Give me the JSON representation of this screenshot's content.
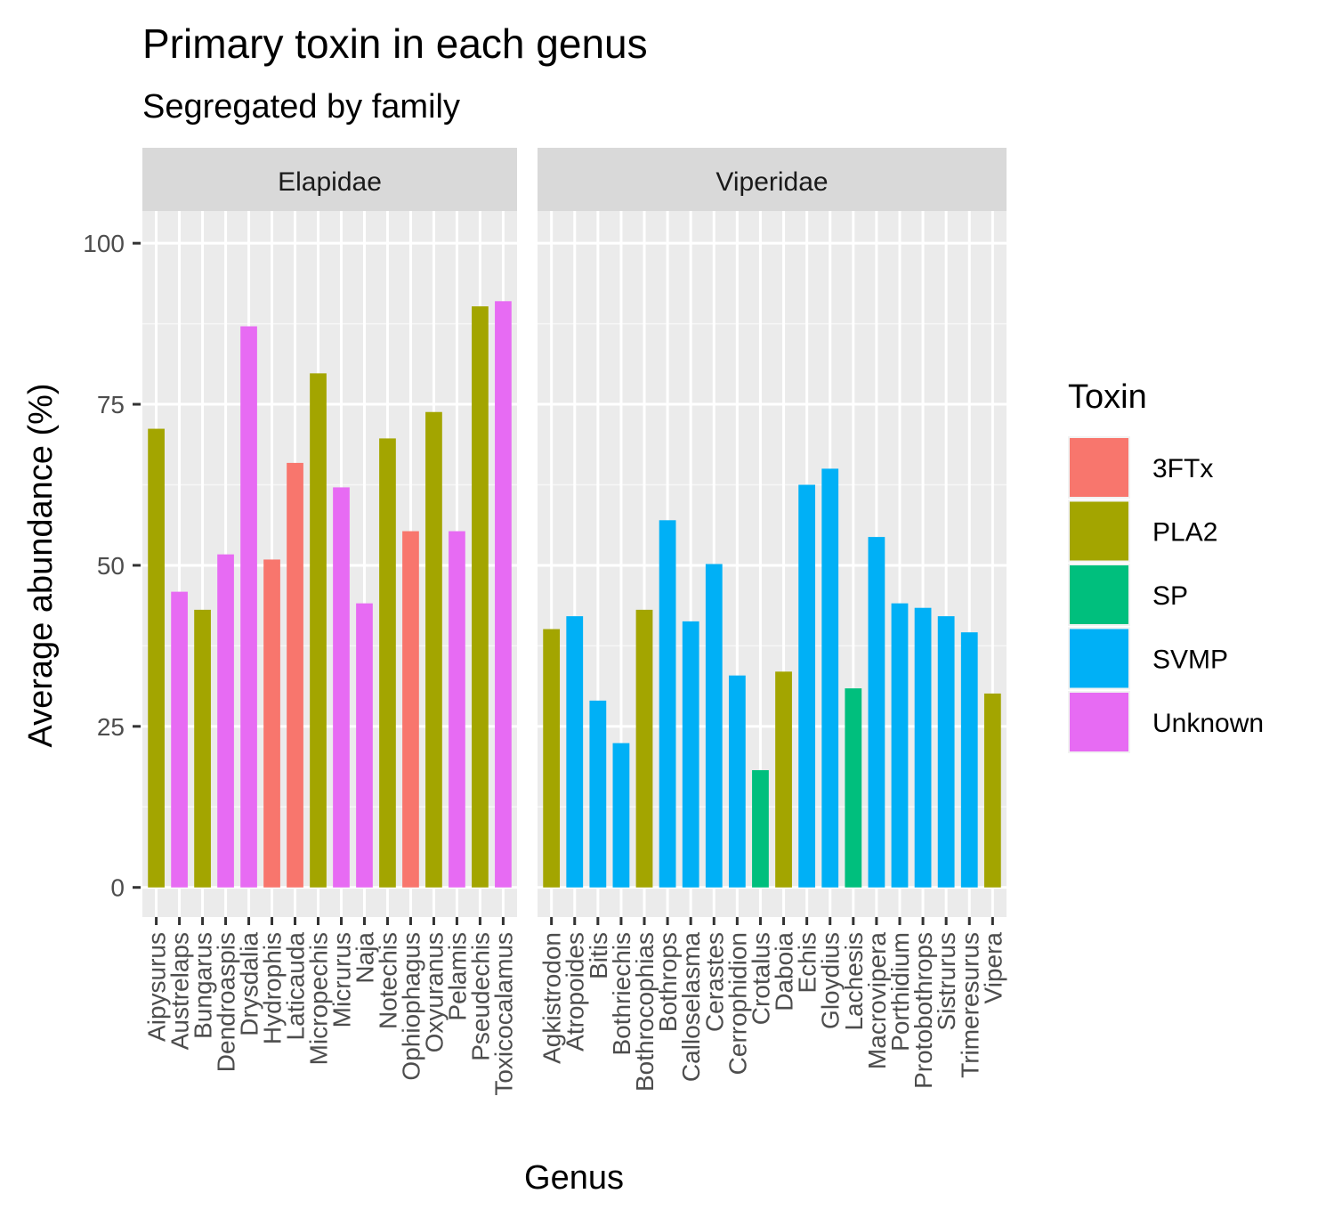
{
  "chart_data": {
    "type": "bar",
    "title": "Primary toxin in each genus",
    "subtitle": "Segregated by family",
    "xlabel": "Genus",
    "ylabel": "Average abundance (%)",
    "ylim": [
      -4.6,
      105
    ],
    "yticks": [
      0,
      25,
      50,
      75,
      100
    ],
    "grid": true,
    "legend": {
      "title": "Toxin",
      "position": "right",
      "entries": [
        {
          "name": "3FTx",
          "color": "#F8766D"
        },
        {
          "name": "PLA2",
          "color": "#A3A500"
        },
        {
          "name": "SP",
          "color": "#00BF7D"
        },
        {
          "name": "SVMP",
          "color": "#00B0F6"
        },
        {
          "name": "Unknown",
          "color": "#E76BF3"
        }
      ]
    },
    "panels": [
      {
        "family": "Elapidae",
        "categories": [
          "Aipysurus",
          "Austrelaps",
          "Bungarus",
          "Dendroaspis",
          "Drysdalia",
          "Hydrophis",
          "Laticauda",
          "Micropechis",
          "Micrurus",
          "Naja",
          "Notechis",
          "Ophiophagus",
          "Oxyuranus",
          "Pelamis",
          "Pseudechis",
          "Toxicocalamus"
        ],
        "values": [
          71.2,
          45.9,
          43.1,
          51.7,
          87.1,
          50.9,
          65.9,
          79.8,
          62.1,
          44.1,
          69.7,
          55.3,
          73.8,
          55.3,
          90.2,
          91.0
        ],
        "toxins": [
          "PLA2",
          "Unknown",
          "PLA2",
          "Unknown",
          "Unknown",
          "3FTx",
          "3FTx",
          "PLA2",
          "Unknown",
          "Unknown",
          "PLA2",
          "3FTx",
          "PLA2",
          "Unknown",
          "PLA2",
          "Unknown"
        ]
      },
      {
        "family": "Viperidae",
        "categories": [
          "Agkistrodon",
          "Atropoides",
          "Bitis",
          "Bothriechis",
          "Bothrocophias",
          "Bothrops",
          "Calloselasma",
          "Cerastes",
          "Cerrophidion",
          "Crotalus",
          "Daboia",
          "Echis",
          "Gloydius",
          "Lachesis",
          "Macrovipera",
          "Porthidium",
          "Protobothrops",
          "Sistrurus",
          "Trimeresurus",
          "Vipera"
        ],
        "values": [
          40.1,
          42.1,
          29.0,
          22.4,
          43.1,
          57.0,
          41.3,
          50.2,
          32.9,
          18.2,
          33.5,
          62.5,
          65.0,
          30.9,
          54.4,
          44.1,
          43.4,
          42.1,
          39.6,
          30.1
        ],
        "toxins": [
          "PLA2",
          "SVMP",
          "SVMP",
          "SVMP",
          "PLA2",
          "SVMP",
          "SVMP",
          "SVMP",
          "SVMP",
          "SP",
          "PLA2",
          "SVMP",
          "SVMP",
          "SP",
          "SVMP",
          "SVMP",
          "SVMP",
          "SVMP",
          "SVMP",
          "PLA2"
        ]
      }
    ]
  }
}
